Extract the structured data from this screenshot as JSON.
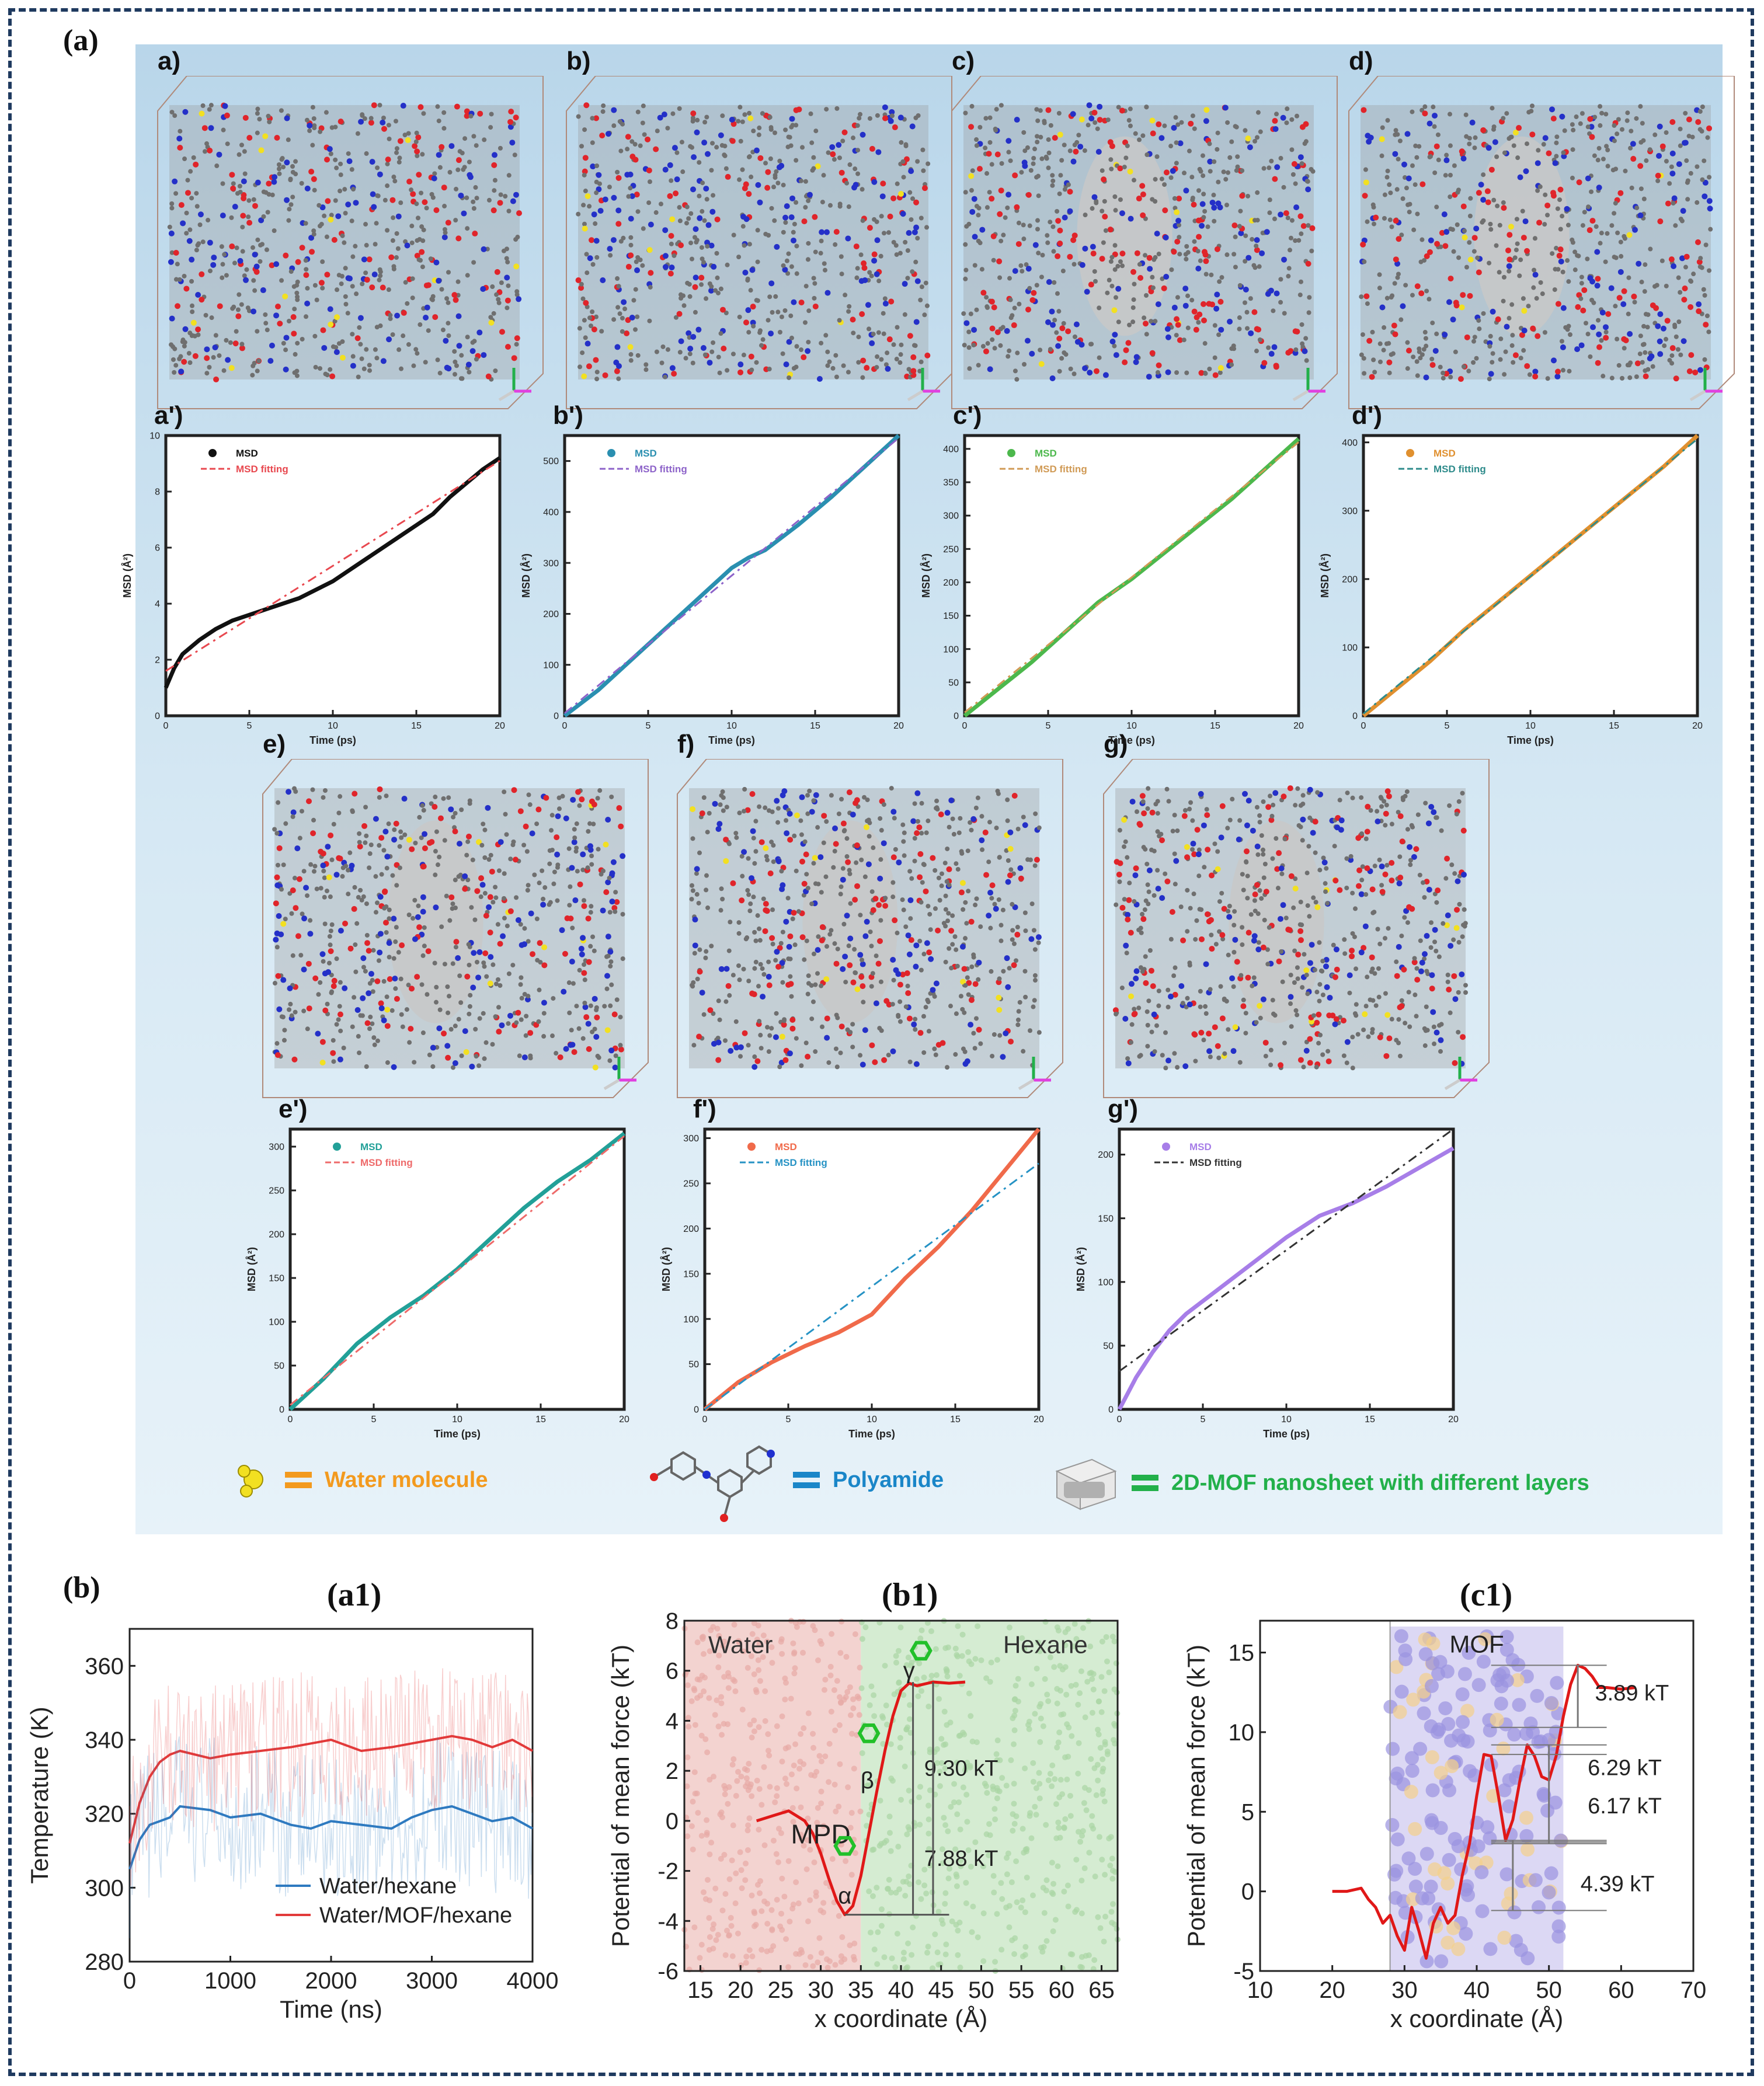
{
  "figure_labels": {
    "a": "(a)",
    "b": "(b)"
  },
  "snapshots": [
    {
      "label": "a)"
    },
    {
      "label": "b)"
    },
    {
      "label": "c)"
    },
    {
      "label": "d)"
    },
    {
      "label": "e)"
    },
    {
      "label": "f)"
    },
    {
      "label": "g)"
    }
  ],
  "legend": {
    "water": "Water molecule",
    "polyamide": "Polyamide",
    "mof": "2D-MOF nanosheet with different layers",
    "colors": {
      "water": "#f39a1e",
      "polyamide": "#1a86c8",
      "mof": "#22b04a"
    }
  },
  "chart_data": [
    {
      "id": "msd_a",
      "panel_label": "a')",
      "type": "line",
      "xlabel": "Time (ps)",
      "ylabel": "MSD (Å²)",
      "xlim": [
        0,
        20
      ],
      "ylim": [
        0,
        10
      ],
      "xticks": [
        0,
        5,
        10,
        15,
        20
      ],
      "yticks": [
        0,
        2,
        4,
        6,
        8,
        10
      ],
      "series": [
        {
          "name": "MSD",
          "color": "#111111",
          "x": [
            0,
            0.5,
            1,
            2,
            3,
            4,
            5,
            6,
            7,
            8,
            9,
            10,
            11,
            12,
            13,
            14,
            15,
            16,
            17,
            18,
            19,
            20
          ],
          "y": [
            1.0,
            1.7,
            2.2,
            2.7,
            3.1,
            3.4,
            3.6,
            3.8,
            4.0,
            4.2,
            4.5,
            4.8,
            5.2,
            5.6,
            6.0,
            6.4,
            6.8,
            7.2,
            7.8,
            8.3,
            8.8,
            9.2
          ]
        },
        {
          "name": "MSD fitting",
          "color": "#e8484f",
          "dash": true,
          "x": [
            0,
            20
          ],
          "y": [
            1.6,
            9.1
          ]
        }
      ]
    },
    {
      "id": "msd_b",
      "panel_label": "b')",
      "type": "line",
      "xlabel": "Time (ps)",
      "ylabel": "MSD (Å²)",
      "xlim": [
        0,
        20
      ],
      "ylim": [
        0,
        550
      ],
      "xticks": [
        0,
        5,
        10,
        15,
        20
      ],
      "yticks": [
        0,
        100,
        200,
        300,
        400,
        500
      ],
      "series": [
        {
          "name": "MSD",
          "color": "#2a8fb0",
          "x": [
            0,
            2,
            4,
            6,
            8,
            10,
            11,
            12,
            14,
            16,
            18,
            20
          ],
          "y": [
            0,
            50,
            110,
            170,
            230,
            290,
            310,
            325,
            375,
            430,
            490,
            550
          ]
        },
        {
          "name": "MSD fitting",
          "color": "#8d63c9",
          "dash": true,
          "x": [
            0,
            20
          ],
          "y": [
            5,
            545
          ]
        }
      ]
    },
    {
      "id": "msd_c",
      "panel_label": "c')",
      "type": "line",
      "xlabel": "Time (ps)",
      "ylabel": "MSD (Å²)",
      "xlim": [
        0,
        20
      ],
      "ylim": [
        0,
        420
      ],
      "xticks": [
        0,
        5,
        10,
        15,
        20
      ],
      "yticks": [
        0,
        50,
        100,
        150,
        200,
        250,
        300,
        350,
        400
      ],
      "series": [
        {
          "name": "MSD",
          "color": "#4cb84c",
          "x": [
            0,
            2,
            4,
            6,
            8,
            10,
            12,
            14,
            16,
            18,
            20
          ],
          "y": [
            0,
            40,
            80,
            125,
            170,
            205,
            245,
            285,
            325,
            370,
            415
          ]
        },
        {
          "name": "MSD fitting",
          "color": "#d09a55",
          "dash": true,
          "x": [
            0,
            20
          ],
          "y": [
            5,
            410
          ]
        }
      ]
    },
    {
      "id": "msd_d",
      "panel_label": "d')",
      "type": "line",
      "xlabel": "Time (ps)",
      "ylabel": "MSD (Å²)",
      "xlim": [
        0,
        20
      ],
      "ylim": [
        0,
        410
      ],
      "xticks": [
        0,
        5,
        10,
        15,
        20
      ],
      "yticks": [
        0,
        100,
        200,
        300,
        400
      ],
      "series": [
        {
          "name": "MSD",
          "color": "#e0902f",
          "x": [
            0,
            2,
            4,
            6,
            8,
            10,
            12,
            14,
            16,
            18,
            20
          ],
          "y": [
            0,
            40,
            80,
            125,
            165,
            205,
            245,
            285,
            325,
            365,
            410
          ]
        },
        {
          "name": "MSD fitting",
          "color": "#2e8b8b",
          "dash": true,
          "x": [
            0,
            20
          ],
          "y": [
            3,
            405
          ]
        }
      ]
    },
    {
      "id": "msd_e",
      "panel_label": "e')",
      "type": "line",
      "xlabel": "Time (ps)",
      "ylabel": "MSD (Å²)",
      "xlim": [
        0,
        20
      ],
      "ylim": [
        0,
        320
      ],
      "xticks": [
        0,
        5,
        10,
        15,
        20
      ],
      "yticks": [
        0,
        50,
        100,
        150,
        200,
        250,
        300
      ],
      "series": [
        {
          "name": "MSD",
          "color": "#22a098",
          "x": [
            0,
            2,
            4,
            6,
            8,
            10,
            12,
            14,
            16,
            18,
            20
          ],
          "y": [
            0,
            35,
            75,
            105,
            130,
            160,
            195,
            230,
            260,
            285,
            315
          ]
        },
        {
          "name": "MSD fitting",
          "color": "#ee6a6a",
          "dash": true,
          "x": [
            0,
            20
          ],
          "y": [
            5,
            312
          ]
        }
      ]
    },
    {
      "id": "msd_f",
      "panel_label": "f')",
      "type": "line",
      "xlabel": "Time (ps)",
      "ylabel": "MSD (Å²)",
      "xlim": [
        0,
        20
      ],
      "ylim": [
        0,
        310
      ],
      "xticks": [
        0,
        5,
        10,
        15,
        20
      ],
      "yticks": [
        0,
        50,
        100,
        150,
        200,
        250,
        300
      ],
      "series": [
        {
          "name": "MSD",
          "color": "#f06a4a",
          "x": [
            0,
            2,
            4,
            6,
            8,
            10,
            11,
            12,
            14,
            16,
            18,
            20
          ],
          "y": [
            0,
            30,
            52,
            70,
            85,
            105,
            125,
            145,
            180,
            220,
            265,
            310
          ]
        },
        {
          "name": "MSD fitting",
          "color": "#2592c4",
          "dash": true,
          "x": [
            0,
            20
          ],
          "y": [
            0,
            272
          ]
        }
      ]
    },
    {
      "id": "msd_g",
      "panel_label": "g')",
      "type": "line",
      "xlabel": "Time (ps)",
      "ylabel": "MSD (Å²)",
      "xlim": [
        0,
        20
      ],
      "ylim": [
        0,
        220
      ],
      "xticks": [
        0,
        5,
        10,
        15,
        20
      ],
      "yticks": [
        0,
        50,
        100,
        150,
        200
      ],
      "series": [
        {
          "name": "MSD",
          "color": "#a77ee8",
          "x": [
            0,
            1,
            2,
            3,
            4,
            6,
            8,
            10,
            12,
            14,
            16,
            18,
            20
          ],
          "y": [
            0,
            25,
            45,
            62,
            75,
            95,
            115,
            135,
            152,
            162,
            175,
            190,
            205
          ]
        },
        {
          "name": "MSD fitting",
          "color": "#333333",
          "dash": true,
          "x": [
            0,
            20
          ],
          "y": [
            30,
            220
          ]
        }
      ]
    },
    {
      "id": "temp_a1",
      "title": "(a1)",
      "type": "line",
      "xlabel": "Time (ns)",
      "ylabel": "Temperature (K)",
      "xlim": [
        0,
        4000
      ],
      "ylim": [
        280,
        370
      ],
      "xticks": [
        0,
        1000,
        2000,
        3000,
        4000
      ],
      "yticks": [
        280,
        300,
        320,
        340,
        360
      ],
      "series": [
        {
          "name": "Water/hexane",
          "color": "#2e7ac0",
          "x": [
            0,
            100,
            200,
            300,
            400,
            500,
            800,
            1000,
            1300,
            1600,
            1800,
            2000,
            2300,
            2600,
            2800,
            3000,
            3200,
            3400,
            3600,
            3800,
            4000
          ],
          "y": [
            305,
            313,
            317,
            318,
            319,
            322,
            321,
            319,
            320,
            317,
            316,
            318,
            317,
            316,
            319,
            321,
            322,
            320,
            318,
            319,
            316
          ]
        },
        {
          "name": "Water/MOF/hexane",
          "color": "#e23a3a",
          "x": [
            0,
            100,
            200,
            300,
            400,
            500,
            800,
            1000,
            1300,
            1600,
            1800,
            2000,
            2300,
            2600,
            2800,
            3000,
            3200,
            3400,
            3600,
            3800,
            4000
          ],
          "y": [
            312,
            323,
            330,
            334,
            336,
            337,
            335,
            336,
            337,
            338,
            339,
            340,
            337,
            338,
            339,
            340,
            341,
            340,
            338,
            340,
            337
          ]
        }
      ]
    },
    {
      "id": "pmf_b1",
      "title": "(b1)",
      "type": "line",
      "xlabel": "x coordinate (Å)",
      "ylabel": "Potential of mean force (kT)",
      "xlim": [
        13,
        67
      ],
      "ylim": [
        -6,
        8
      ],
      "xticks": [
        15,
        20,
        25,
        30,
        35,
        40,
        45,
        50,
        55,
        60,
        65
      ],
      "yticks": [
        -6,
        -4,
        -2,
        0,
        2,
        4,
        6,
        8
      ],
      "regions": [
        "Water",
        "Hexane"
      ],
      "series": [
        {
          "name": "",
          "color": "#e01818",
          "x": [
            22,
            24,
            26,
            28,
            29,
            30,
            31,
            32,
            33,
            34,
            35,
            36,
            37,
            38,
            39,
            40,
            41,
            42,
            44,
            46,
            48
          ],
          "y": [
            0,
            0.2,
            0.4,
            0,
            -0.5,
            -1.3,
            -2.3,
            -3.2,
            -3.75,
            -3.4,
            -2.2,
            -0.5,
            1.2,
            2.8,
            4.2,
            5.2,
            5.5,
            5.4,
            5.55,
            5.5,
            5.55
          ]
        }
      ],
      "annotations": [
        "MPD",
        "α",
        "β",
        "γ",
        "9.30 kT",
        "7.88 kT"
      ]
    },
    {
      "id": "pmf_c1",
      "title": "(c1)",
      "type": "line",
      "xlabel": "x coordinate (Å)",
      "ylabel": "Potential of mean force (kT)",
      "xlim": [
        10,
        70
      ],
      "ylim": [
        -5,
        17
      ],
      "xticks": [
        10,
        20,
        30,
        40,
        50,
        60,
        70
      ],
      "yticks": [
        -5,
        0,
        5,
        10,
        15
      ],
      "regions": [
        "MOF"
      ],
      "series": [
        {
          "name": "",
          "color": "#e01818",
          "x": [
            20,
            22,
            24,
            25,
            26,
            27,
            28,
            29,
            30,
            31,
            32,
            33,
            34,
            35,
            36,
            37,
            38,
            39,
            40,
            41,
            42,
            43,
            44,
            45,
            46,
            47,
            48,
            49,
            50,
            51,
            52,
            53,
            54,
            55,
            56,
            57,
            58,
            60,
            62
          ],
          "y": [
            0,
            0,
            0.2,
            -0.5,
            -1.0,
            -2.0,
            -1.5,
            -2.8,
            -3.7,
            -1.0,
            -2.5,
            -4.2,
            -2.0,
            -1.0,
            -2.0,
            -1.5,
            1.0,
            3.0,
            6.0,
            8.6,
            8.5,
            6.0,
            3.2,
            4.5,
            7.0,
            9.2,
            8.5,
            7.2,
            7.0,
            8.5,
            11.0,
            13.0,
            14.2,
            14.0,
            13.5,
            12.8,
            12.8,
            12.7,
            12.8
          ]
        }
      ],
      "annotations": [
        "3.89 kT",
        "6.29 kT",
        "6.17 kT",
        "4.39 kT"
      ]
    }
  ]
}
